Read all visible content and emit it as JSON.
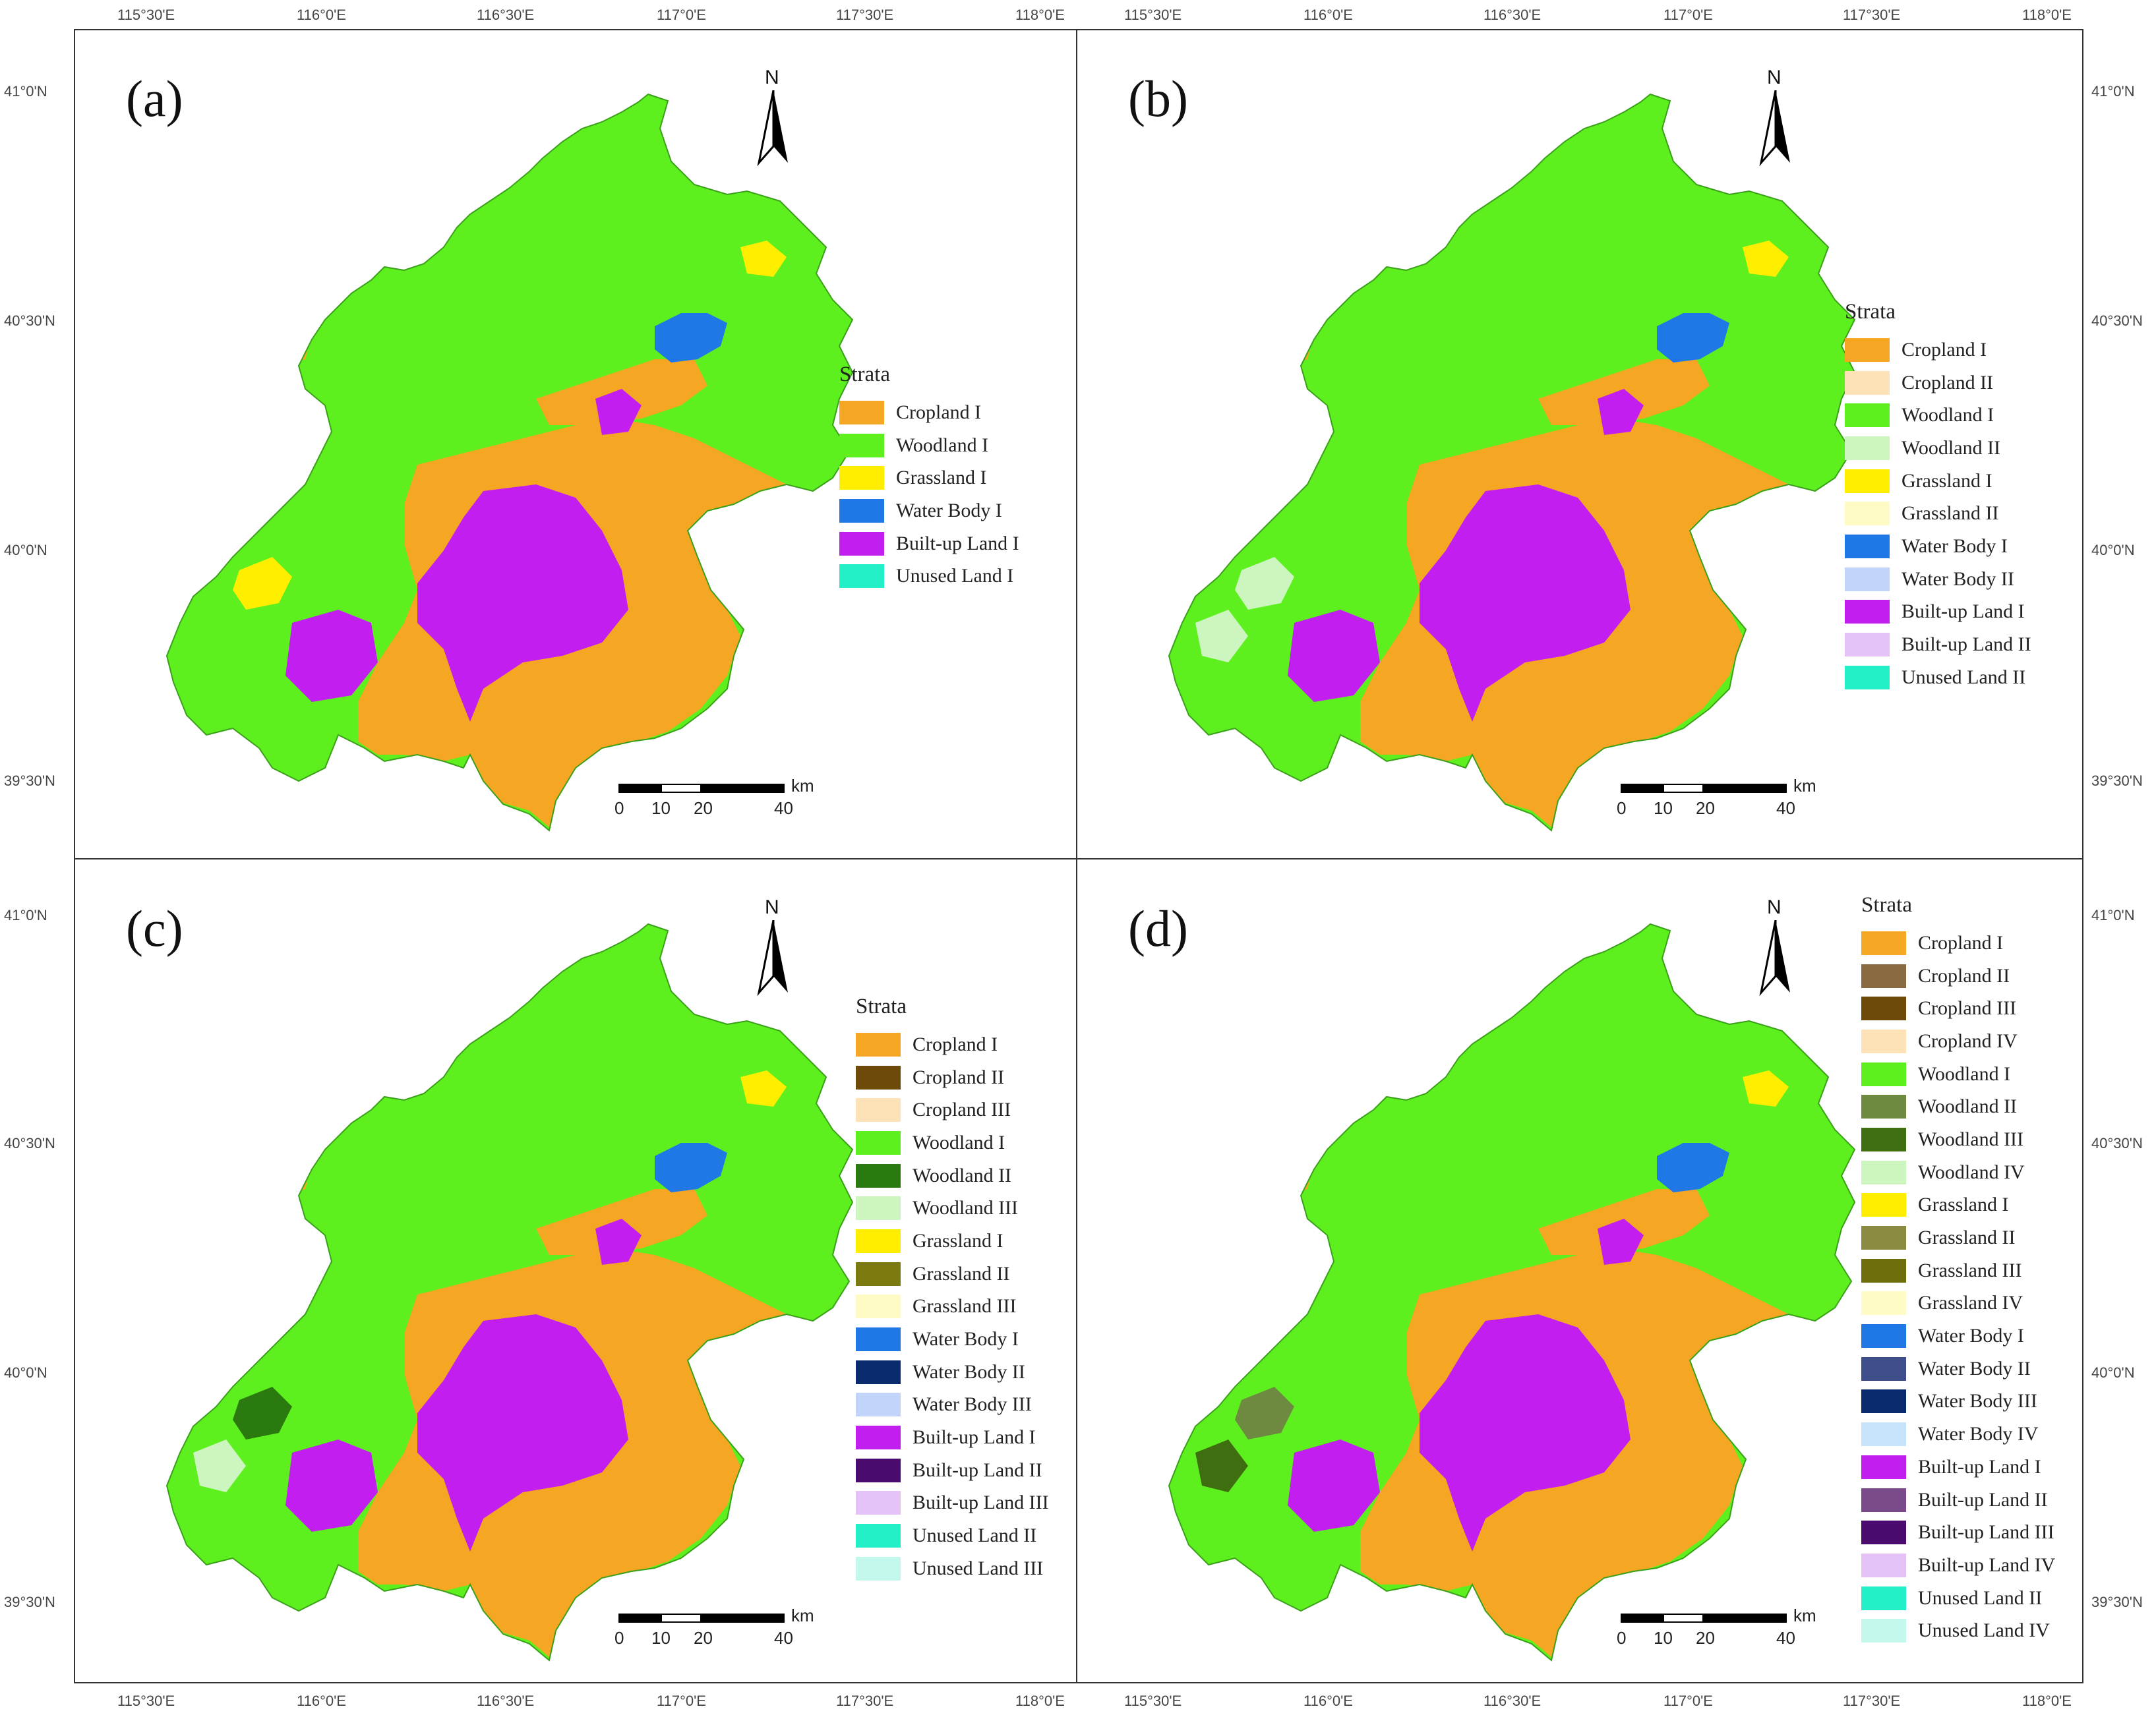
{
  "coordinates": {
    "longitude_labels": [
      "115°30'E",
      "116°0'E",
      "116°30'E",
      "117°0'E",
      "117°30'E",
      "118°0'E"
    ],
    "latitude_labels": [
      "41°0'N",
      "40°30'N",
      "40°0'N",
      "39°30'N"
    ]
  },
  "legend_title": "Strata",
  "north_label": "N",
  "scale": {
    "ticks": [
      "0",
      "10",
      "20",
      "40"
    ],
    "unit": "km"
  },
  "colors": {
    "cropland_1": "#f5a623",
    "woodland_1": "#5ef01e",
    "builtup_1": "#c21ef0",
    "water_1": "#1f78e6",
    "background": "#ffffff"
  },
  "panels": [
    {
      "label": "(a)",
      "legend": [
        {
          "label": "Cropland I",
          "color": "#f5a623"
        },
        {
          "label": "Woodland I",
          "color": "#5ef01e"
        },
        {
          "label": "Grassland I",
          "color": "#ffee00"
        },
        {
          "label": "Water Body I",
          "color": "#1f78e6"
        },
        {
          "label": "Built-up Land I",
          "color": "#c21ef0"
        },
        {
          "label": "Unused Land I",
          "color": "#23f0c7"
        }
      ]
    },
    {
      "label": "(b)",
      "legend": [
        {
          "label": "Cropland I",
          "color": "#f5a623"
        },
        {
          "label": "Cropland II",
          "color": "#fde2b8"
        },
        {
          "label": "Woodland I",
          "color": "#5ef01e"
        },
        {
          "label": "Woodland II",
          "color": "#ccf5c0"
        },
        {
          "label": "Grassland I",
          "color": "#ffee00"
        },
        {
          "label": "Grassland II",
          "color": "#fffbc4"
        },
        {
          "label": "Water Body I",
          "color": "#1f78e6"
        },
        {
          "label": "Water Body II",
          "color": "#c2d4fa"
        },
        {
          "label": "Built-up Land I",
          "color": "#c21ef0"
        },
        {
          "label": "Built-up Land II",
          "color": "#e4c2f5"
        },
        {
          "label": "Unused Land II",
          "color": "#23f0c7"
        }
      ]
    },
    {
      "label": "(c)",
      "legend": [
        {
          "label": "Cropland I",
          "color": "#f5a623"
        },
        {
          "label": "Cropland II",
          "color": "#6e4a0a"
        },
        {
          "label": "Cropland III",
          "color": "#fde2b8"
        },
        {
          "label": "Woodland I",
          "color": "#5ef01e"
        },
        {
          "label": "Woodland II",
          "color": "#2a7a10"
        },
        {
          "label": "Woodland III",
          "color": "#ccf5c0"
        },
        {
          "label": "Grassland I",
          "color": "#ffee00"
        },
        {
          "label": "Grassland II",
          "color": "#7a7a10"
        },
        {
          "label": "Grassland III",
          "color": "#fffbc4"
        },
        {
          "label": "Water Body I",
          "color": "#1f78e6"
        },
        {
          "label": "Water Body II",
          "color": "#0a2a6e"
        },
        {
          "label": "Water Body III",
          "color": "#c2d4fa"
        },
        {
          "label": "Built-up Land I",
          "color": "#c21ef0"
        },
        {
          "label": "Built-up Land II",
          "color": "#4a0a6e"
        },
        {
          "label": "Built-up Land III",
          "color": "#e4c2f5"
        },
        {
          "label": "Unused Land II",
          "color": "#23f0c7"
        },
        {
          "label": "Unused Land III",
          "color": "#c4f8ec"
        }
      ]
    },
    {
      "label": "(d)",
      "legend": [
        {
          "label": "Cropland I",
          "color": "#f5a623"
        },
        {
          "label": "Cropland II",
          "color": "#8a6a40"
        },
        {
          "label": "Cropland III",
          "color": "#6e4a0a"
        },
        {
          "label": "Cropland IV",
          "color": "#fde2b8"
        },
        {
          "label": "Woodland I",
          "color": "#5ef01e"
        },
        {
          "label": "Woodland II",
          "color": "#6e8a40"
        },
        {
          "label": "Woodland III",
          "color": "#3e6e10"
        },
        {
          "label": "Woodland IV",
          "color": "#ccf5c0"
        },
        {
          "label": "Grassland I",
          "color": "#ffee00"
        },
        {
          "label": "Grassland II",
          "color": "#8a8a40"
        },
        {
          "label": "Grassland III",
          "color": "#6e6e0a"
        },
        {
          "label": "Grassland IV",
          "color": "#fffbc4"
        },
        {
          "label": "Water Body I",
          "color": "#1f78e6"
        },
        {
          "label": "Water Body II",
          "color": "#3e4e8a"
        },
        {
          "label": "Water Body III",
          "color": "#0a2a6e"
        },
        {
          "label": "Water Body IV",
          "color": "#c8e4fa"
        },
        {
          "label": "Built-up Land I",
          "color": "#c21ef0"
        },
        {
          "label": "Built-up Land II",
          "color": "#7a4a8a"
        },
        {
          "label": "Built-up Land III",
          "color": "#4a0a6e"
        },
        {
          "label": "Built-up Land IV",
          "color": "#e4c2f5"
        },
        {
          "label": "Unused Land II",
          "color": "#23f0c7"
        },
        {
          "label": "Unused Land IV",
          "color": "#c4f8ec"
        }
      ]
    }
  ]
}
